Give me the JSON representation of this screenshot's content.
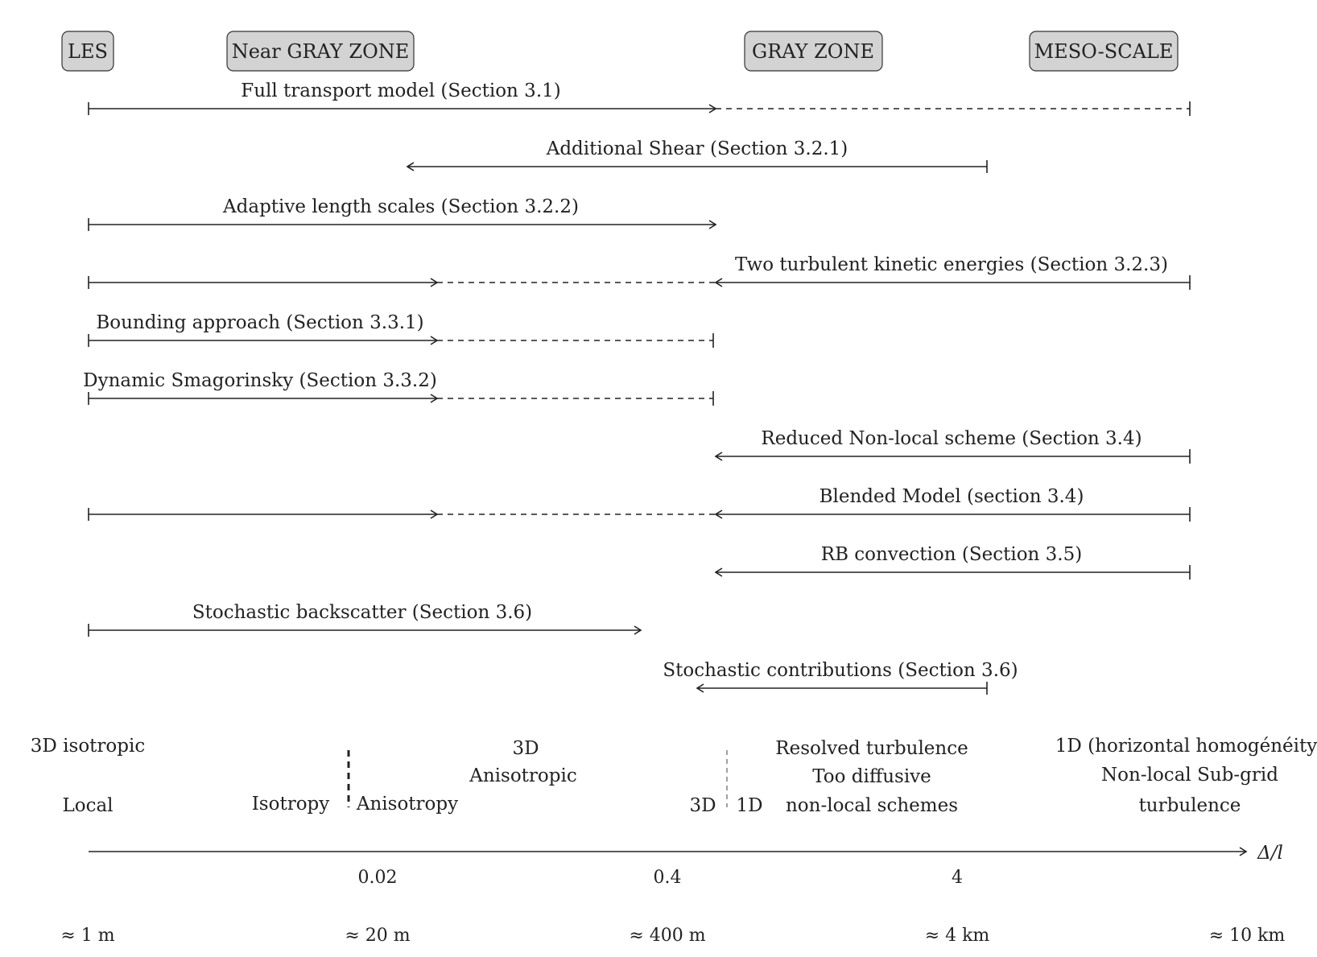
{
  "zones": [
    {
      "label": "LES"
    },
    {
      "label": "Near GRAY ZONE"
    },
    {
      "label": "GRAY ZONE"
    },
    {
      "label": "MESO-SCALE"
    }
  ],
  "models": [
    {
      "label": "Full transport model (Section 3.1)"
    },
    {
      "label": "Additional Shear (Section 3.2.1)"
    },
    {
      "label": "Adaptive length scales (Section 3.2.2)"
    },
    {
      "label": "Two turbulent kinetic energies (Section 3.2.3)"
    },
    {
      "label": "Bounding approach (Section 3.3.1)"
    },
    {
      "label": "Dynamic Smagorinsky (Section 3.3.2)"
    },
    {
      "label": "Reduced Non-local scheme (Section 3.4)"
    },
    {
      "label": "Blended Model (section 3.4)"
    },
    {
      "label": "RB convection (Section 3.5)"
    },
    {
      "label": "Stochastic backscatter (Section 3.6)"
    },
    {
      "label": "Stochastic contributions (Section 3.6)"
    }
  ],
  "notes": {
    "iso3d": "3D isotropic",
    "local": "Local",
    "isotropy": "Isotropy",
    "anisotropy": "Anisotropy",
    "aniso3d_1": "3D",
    "aniso3d_2": "Anisotropic",
    "d3": "3D",
    "d1": "1D",
    "resolved_1": "Resolved turbulence",
    "resolved_2": "Too diffusive",
    "resolved_3": "non-local schemes",
    "meso_1": "1D (horizontal homogénéity)",
    "meso_2": "Non-local Sub-grid",
    "meso_3": "turbulence"
  },
  "axis": {
    "label": "Δ/l",
    "ratio_ticks": [
      "0.02",
      "0.4",
      "4"
    ],
    "size_ticks": [
      "≈ 1 m",
      "≈ 20 m",
      "≈ 400 m",
      "≈ 4 km",
      "≈ 10 km"
    ]
  }
}
